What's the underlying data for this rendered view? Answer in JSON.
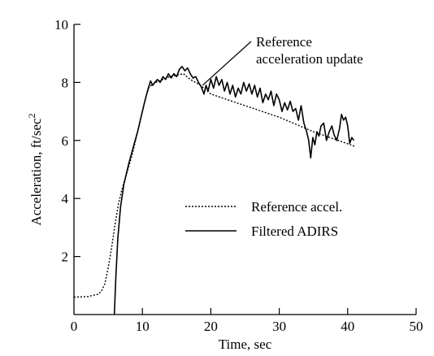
{
  "chart_data": {
    "type": "line",
    "title": "",
    "xlabel": "Time, sec",
    "ylabel_main": "Acceleration, ft/sec",
    "ylabel_sup": "2",
    "xlim": [
      0,
      50
    ],
    "ylim": [
      0,
      10
    ],
    "x_ticks": [
      0,
      10,
      20,
      30,
      40,
      50
    ],
    "y_ticks": [
      2,
      4,
      6,
      8,
      10
    ],
    "grid": false,
    "legend": {
      "placement": "center-right",
      "entries": [
        {
          "label": "Reference accel.",
          "style": "dotted"
        },
        {
          "label": "Filtered ADIRS",
          "style": "solid"
        }
      ]
    },
    "annotations": [
      {
        "lines": [
          "Reference",
          "acceleration update"
        ],
        "points_to": [
          18.8,
          7.9
        ]
      }
    ],
    "series": [
      {
        "name": "Reference accel.",
        "style": "dotted",
        "color": "#000000",
        "points": [
          [
            0,
            0.6
          ],
          [
            2,
            0.62
          ],
          [
            3.5,
            0.7
          ],
          [
            4,
            0.8
          ],
          [
            4.5,
            1.05
          ],
          [
            5,
            1.6
          ],
          [
            5.5,
            2.3
          ],
          [
            6,
            3.1
          ],
          [
            6.5,
            3.8
          ],
          [
            7,
            4.3
          ],
          [
            7.5,
            4.7
          ],
          [
            8,
            5.1
          ],
          [
            8.5,
            5.5
          ],
          [
            9,
            6.0
          ],
          [
            9.5,
            6.5
          ],
          [
            10,
            7.0
          ],
          [
            10.5,
            7.5
          ],
          [
            11,
            7.85
          ],
          [
            12,
            8.0
          ],
          [
            13,
            8.1
          ],
          [
            14,
            8.2
          ],
          [
            15,
            8.25
          ],
          [
            16,
            8.3
          ],
          [
            17,
            8.1
          ],
          [
            18.5,
            7.9
          ],
          [
            20,
            7.6
          ],
          [
            25,
            7.2
          ],
          [
            30,
            6.8
          ],
          [
            35,
            6.3
          ],
          [
            41,
            5.8
          ]
        ]
      },
      {
        "name": "Filtered ADIRS",
        "style": "solid",
        "color": "#000000",
        "points": [
          [
            5.9,
            0
          ],
          [
            6.1,
            1.2
          ],
          [
            6.4,
            2.6
          ],
          [
            6.8,
            3.7
          ],
          [
            7.3,
            4.5
          ],
          [
            8,
            5.2
          ],
          [
            8.7,
            5.8
          ],
          [
            9.3,
            6.3
          ],
          [
            9.8,
            6.8
          ],
          [
            10.3,
            7.3
          ],
          [
            10.8,
            7.75
          ],
          [
            11.2,
            8.05
          ],
          [
            11.5,
            7.9
          ],
          [
            11.8,
            8.0
          ],
          [
            12.2,
            8.1
          ],
          [
            12.6,
            8.0
          ],
          [
            13,
            8.2
          ],
          [
            13.4,
            8.1
          ],
          [
            13.8,
            8.3
          ],
          [
            14.2,
            8.15
          ],
          [
            14.6,
            8.3
          ],
          [
            15,
            8.2
          ],
          [
            15.4,
            8.45
          ],
          [
            15.8,
            8.55
          ],
          [
            16.2,
            8.4
          ],
          [
            16.6,
            8.5
          ],
          [
            17,
            8.3
          ],
          [
            17.4,
            8.15
          ],
          [
            17.8,
            8.2
          ],
          [
            18.2,
            8.0
          ],
          [
            18.6,
            7.85
          ],
          [
            19,
            7.6
          ],
          [
            19.3,
            7.9
          ],
          [
            19.6,
            7.7
          ],
          [
            20,
            8.1
          ],
          [
            20.4,
            7.8
          ],
          [
            20.8,
            8.2
          ],
          [
            21.2,
            7.9
          ],
          [
            21.6,
            8.1
          ],
          [
            22,
            7.7
          ],
          [
            22.4,
            8.0
          ],
          [
            22.8,
            7.6
          ],
          [
            23.2,
            7.9
          ],
          [
            23.6,
            7.5
          ],
          [
            24,
            7.8
          ],
          [
            24.4,
            7.6
          ],
          [
            24.8,
            8.0
          ],
          [
            25.2,
            7.7
          ],
          [
            25.6,
            7.95
          ],
          [
            26,
            7.6
          ],
          [
            26.4,
            7.9
          ],
          [
            26.8,
            7.5
          ],
          [
            27.2,
            7.8
          ],
          [
            27.6,
            7.3
          ],
          [
            28,
            7.6
          ],
          [
            28.4,
            7.4
          ],
          [
            28.8,
            7.7
          ],
          [
            29.2,
            7.2
          ],
          [
            29.6,
            7.6
          ],
          [
            30,
            7.4
          ],
          [
            30.4,
            7.0
          ],
          [
            30.8,
            7.3
          ],
          [
            31.2,
            7.05
          ],
          [
            31.6,
            7.35
          ],
          [
            32,
            7.0
          ],
          [
            32.4,
            7.1
          ],
          [
            32.8,
            6.7
          ],
          [
            33.2,
            7.2
          ],
          [
            33.6,
            6.6
          ],
          [
            34,
            6.3
          ],
          [
            34.3,
            6.0
          ],
          [
            34.6,
            5.4
          ],
          [
            34.9,
            6.1
          ],
          [
            35.2,
            5.85
          ],
          [
            35.5,
            6.3
          ],
          [
            35.8,
            6.15
          ],
          [
            36.1,
            6.5
          ],
          [
            36.5,
            6.6
          ],
          [
            36.9,
            6.0
          ],
          [
            37.3,
            6.3
          ],
          [
            37.7,
            6.5
          ],
          [
            38,
            6.2
          ],
          [
            38.4,
            6.0
          ],
          [
            38.8,
            6.4
          ],
          [
            39.1,
            6.9
          ],
          [
            39.4,
            6.7
          ],
          [
            39.7,
            6.8
          ],
          [
            40,
            6.5
          ],
          [
            40.3,
            5.9
          ],
          [
            40.6,
            6.1
          ],
          [
            40.9,
            6.0
          ]
        ]
      }
    ]
  }
}
